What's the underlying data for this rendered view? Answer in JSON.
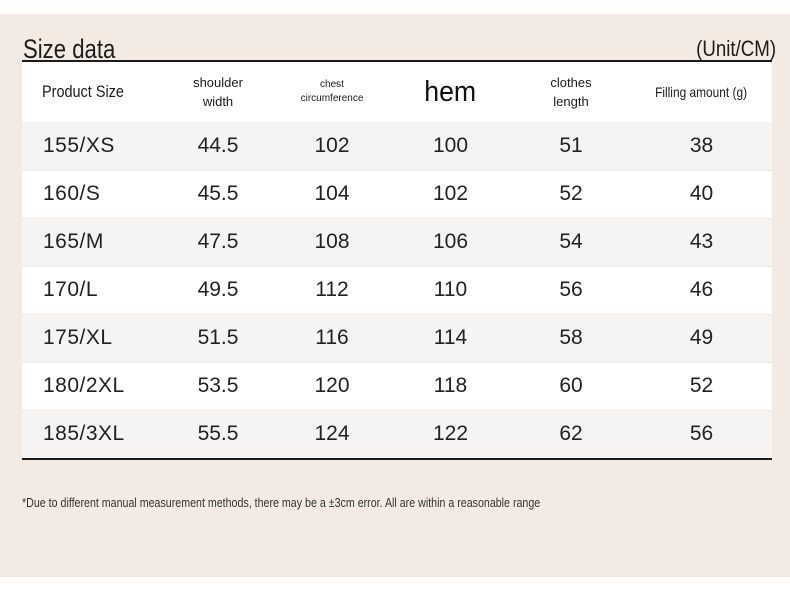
{
  "title": "Size data",
  "unit": "(Unit/CM)",
  "headers": {
    "product_size": "Product Size",
    "shoulder_width_line1": "shoulder",
    "shoulder_width_line2": "width",
    "chest_line1": "chest",
    "chest_line2": "circumference",
    "hem": "hem",
    "clothes_length_line1": "clothes",
    "clothes_length_line2": "length",
    "filling_amount": "Filling amount (g)"
  },
  "rows": [
    {
      "size": "155/XS",
      "shoulder": "44.5",
      "chest": "102",
      "hem": "100",
      "length": "51",
      "filling": "38"
    },
    {
      "size": "160/S",
      "shoulder": "45.5",
      "chest": "104",
      "hem": "102",
      "length": "52",
      "filling": "40"
    },
    {
      "size": "165/M",
      "shoulder": "47.5",
      "chest": "108",
      "hem": "106",
      "length": "54",
      "filling": "43"
    },
    {
      "size": "170/L",
      "shoulder": "49.5",
      "chest": "112",
      "hem": "110",
      "length": "56",
      "filling": "46"
    },
    {
      "size": "175/XL",
      "shoulder": "51.5",
      "chest": "116",
      "hem": "114",
      "length": "58",
      "filling": "49"
    },
    {
      "size": "180/2XL",
      "shoulder": "53.5",
      "chest": "120",
      "hem": "118",
      "length": "60",
      "filling": "52"
    },
    {
      "size": "185/3XL",
      "shoulder": "55.5",
      "chest": "124",
      "hem": "122",
      "length": "62",
      "filling": "56"
    }
  ],
  "footnote": "*Due to different manual measurement methods, there may be a ±3cm error. All are within a reasonable range",
  "colors": {
    "panel_background": "#f3ebe3",
    "row_stripe": "#f6f4f2",
    "text": "#1c1c1c"
  }
}
